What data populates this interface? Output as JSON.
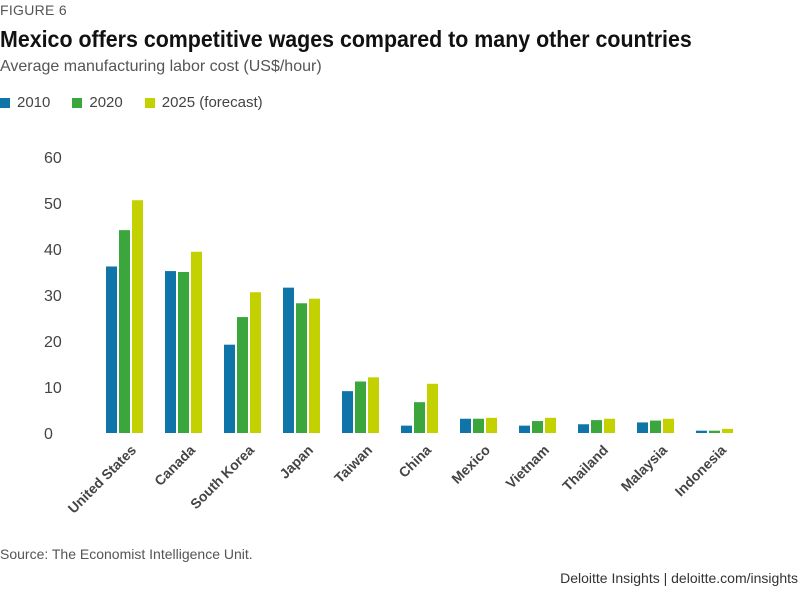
{
  "figure_label": "FIGURE 6",
  "title": "Mexico offers competitive wages compared to many other countries",
  "subtitle": "Average manufacturing labor cost (US$/hour)",
  "source": "Source: The Economist Intelligence Unit.",
  "footer": "Deloitte Insights | deloitte.com/insights",
  "colors": {
    "2010": "#0f75a8",
    "2020": "#3aa63b",
    "2025": "#c3d100",
    "text": "#333333"
  },
  "chart_data": {
    "type": "bar",
    "title": "Mexico offers competitive wages compared to many other countries",
    "ylabel": "Average manufacturing labor cost (US$/hour)",
    "xlabel": "",
    "ylim": [
      0,
      60
    ],
    "yticks": [
      0,
      10,
      20,
      30,
      40,
      50,
      60
    ],
    "grid": false,
    "legend_position": "top-left",
    "categories": [
      "United States",
      "Canada",
      "South Korea",
      "Japan",
      "Taiwan",
      "China",
      "Mexico",
      "Vietnam",
      "Thailand",
      "Malaysia",
      "Indonesia"
    ],
    "series": [
      {
        "name": "2010",
        "values": [
          36.2,
          35.2,
          19.2,
          31.6,
          9.1,
          1.6,
          3.1,
          1.6,
          1.9,
          2.3,
          0.5
        ]
      },
      {
        "name": "2020",
        "values": [
          44.1,
          35.0,
          25.2,
          28.2,
          11.2,
          6.7,
          3.1,
          2.6,
          2.8,
          2.7,
          0.5
        ]
      },
      {
        "name": "2025 (forecast)",
        "values": [
          50.6,
          39.4,
          30.6,
          29.2,
          12.1,
          10.7,
          3.3,
          3.3,
          3.1,
          3.1,
          0.9
        ]
      }
    ]
  }
}
